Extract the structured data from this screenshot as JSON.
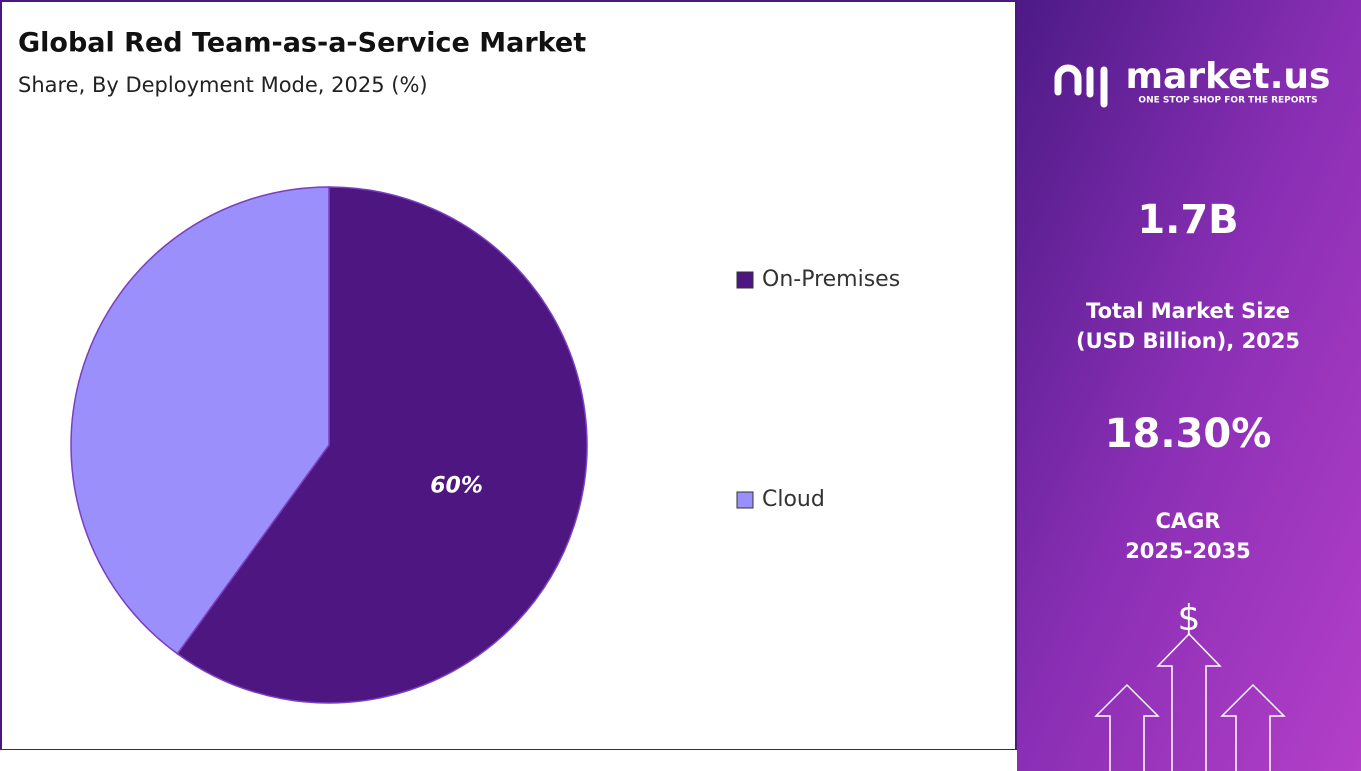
{
  "chart_data": {
    "type": "pie",
    "title": "Global Red Team-as-a-Service Market",
    "subtitle": "Share, By Deployment Mode, 2025 (%)",
    "categories": [
      "On-Premises",
      "Cloud"
    ],
    "values": [
      60,
      40
    ],
    "value_labels": [
      "60%",
      null
    ],
    "colors": [
      "#4e1680",
      "#9b8ffb"
    ],
    "legend": "right"
  },
  "panel": {
    "logo": "market.us",
    "tagline": "ONE STOP SHOP FOR THE REPORTS",
    "market_size": "1.7B",
    "market_size_label": [
      "Total Market Size",
      "(USD Billion), 2025"
    ],
    "cagr": "18.30%",
    "cagr_label": [
      "CAGR",
      "2025-2035"
    ],
    "symbol": "$"
  }
}
